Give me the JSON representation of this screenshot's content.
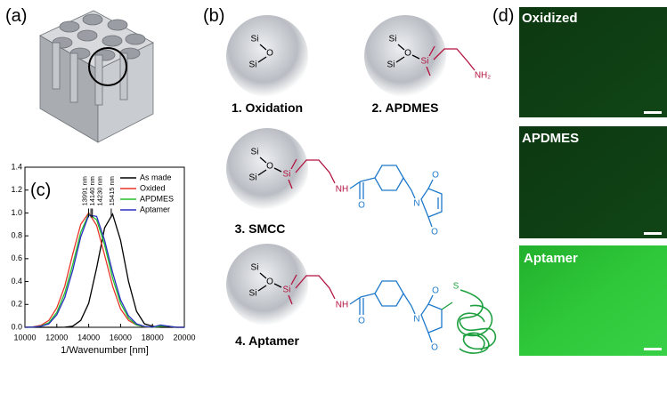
{
  "panel_labels": {
    "a": "(a)",
    "b": "(b)",
    "c": "(c)",
    "d": "(d)"
  },
  "schematic": {
    "steps": [
      "1. Oxidation",
      "2. APDMES",
      "3. SMCC",
      "4. Aptamer"
    ],
    "atoms": {
      "si": "Si",
      "o": "O",
      "nh2": "NH₂",
      "nh": "NH",
      "n": "N",
      "s": "S"
    }
  },
  "micrographs": [
    "Oxidized",
    "APDMES",
    "Aptamer"
  ],
  "chart_data": {
    "type": "line",
    "xlabel": "1/Wavenumber [nm]",
    "x": [
      10000,
      10500,
      11000,
      11500,
      12000,
      12500,
      13000,
      13500,
      14000,
      14500,
      15000,
      15500,
      16000,
      16500,
      17000,
      17500,
      18000,
      18500,
      19000,
      19500,
      20000
    ],
    "series": [
      {
        "name": "As made",
        "color": "#000000",
        "values": [
          0,
          0,
          0,
          0,
          0,
          0.001,
          0.01,
          0.06,
          0.21,
          0.52,
          0.87,
          0.99,
          0.76,
          0.4,
          0.14,
          0.03,
          0.01,
          0,
          0,
          0,
          0
        ]
      },
      {
        "name": "Oxided",
        "color": "#e8352a",
        "values": [
          0.001,
          0.004,
          0.017,
          0.06,
          0.17,
          0.36,
          0.64,
          0.9,
          1.0,
          0.89,
          0.63,
          0.36,
          0.16,
          0.06,
          0.02,
          0.004,
          0,
          0.01,
          0.01,
          0,
          0
        ]
      },
      {
        "name": "APDMES",
        "color": "#22c02a",
        "values": [
          0,
          0.002,
          0.011,
          0.04,
          0.13,
          0.3,
          0.55,
          0.83,
          0.99,
          0.94,
          0.72,
          0.43,
          0.21,
          0.08,
          0.02,
          0.006,
          0,
          0.01,
          0.01,
          0,
          0
        ]
      },
      {
        "name": "Aptamer",
        "color": "#2a2fc0",
        "values": [
          0,
          0.002,
          0.009,
          0.03,
          0.11,
          0.26,
          0.5,
          0.79,
          0.98,
          0.97,
          0.76,
          0.48,
          0.24,
          0.1,
          0.03,
          0.008,
          0.001,
          0.02,
          0.01,
          0,
          0
        ]
      }
    ],
    "xlim": [
      10000,
      20000
    ],
    "xticks": [
      10000,
      12000,
      14000,
      16000,
      18000,
      20000
    ],
    "ylim": [
      0,
      1.4
    ],
    "yticks": [
      {
        "value": 0,
        "label": "0.0"
      },
      {
        "value": 0.2,
        "label": "0.2"
      },
      {
        "value": 0.4,
        "label": "0.4"
      },
      {
        "value": 0.6,
        "label": "0.6"
      },
      {
        "value": 0.8,
        "label": "0.8"
      },
      {
        "value": 1.0,
        "label": "1.0"
      },
      {
        "value": 1.2,
        "label": "1.2"
      },
      {
        "value": 1.4,
        "label": "1.4"
      }
    ],
    "grid": false,
    "legend": "upper right",
    "annotations": [
      {
        "text": "13991 nm",
        "x": 13991,
        "y": 1.0
      },
      {
        "text": "14140 nm",
        "x": 14140,
        "y": 1.0
      },
      {
        "text": "14230 nm",
        "x": 14230,
        "y": 1.0
      },
      {
        "text": "15415 nm",
        "x": 15415,
        "y": 1.0
      }
    ]
  }
}
